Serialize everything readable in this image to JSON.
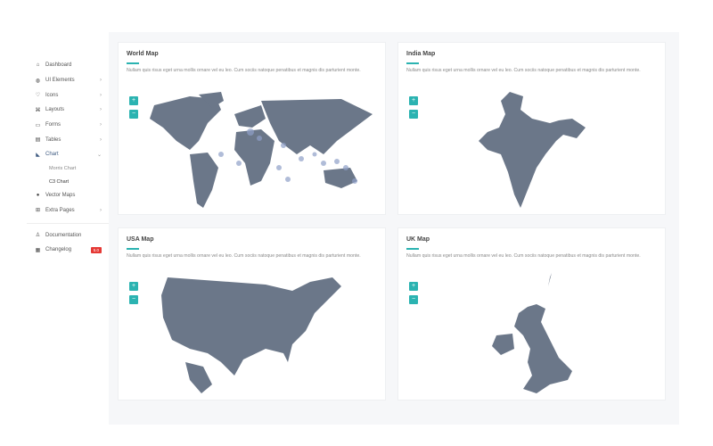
{
  "sidebar": {
    "items": [
      {
        "label": "Dashboard",
        "icon": "home-icon"
      },
      {
        "label": "UI Elements",
        "icon": "globe-icon"
      },
      {
        "label": "Icons",
        "icon": "heart-icon"
      },
      {
        "label": "Layouts",
        "icon": "grid-icon"
      },
      {
        "label": "Forms",
        "icon": "form-icon"
      },
      {
        "label": "Tables",
        "icon": "table-icon"
      },
      {
        "label": "Chart",
        "icon": "chart-icon"
      },
      {
        "label": "Vector Maps",
        "icon": "map-pin-icon"
      },
      {
        "label": "Extra Pages",
        "icon": "pages-icon"
      }
    ],
    "chart_sub": [
      "Morris Chart",
      "C3 Chart"
    ],
    "documentation": "Documentation",
    "changelog": "Changelog",
    "changelog_badge": "5.0"
  },
  "cards": [
    {
      "title": "World Map",
      "text": "Nullam quis risus eget urna mollis ornare vel eu leo. Cum sociis natoque penatibus et magnis dis parturient monte."
    },
    {
      "title": "India Map",
      "text": "Nullam quis risus eget urna mollis ornare vel eu leo. Cum sociis natoque penatibus et magnis dis parturient monte."
    },
    {
      "title": "USA Map",
      "text": "Nullam quis risus eget urna mollis ornare vel eu leo. Cum sociis natoque penatibus et magnis dis parturient monte."
    },
    {
      "title": "UK Map",
      "text": "Nullam quis risus eget urna mollis ornare vel eu leo. Cum sociis natoque penatibus et magnis dis parturient monte."
    }
  ],
  "zoom": {
    "in": "+",
    "out": "−"
  },
  "colors": {
    "accent": "#2bb3b1",
    "map": "#6b7789",
    "badge": "#e53935"
  }
}
